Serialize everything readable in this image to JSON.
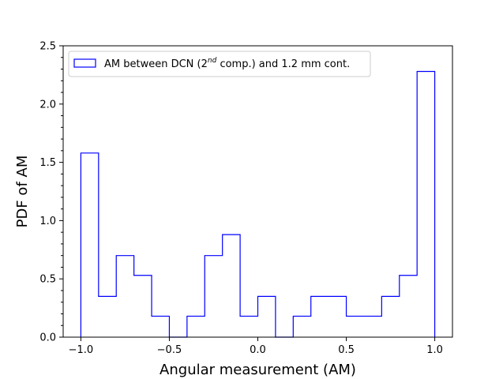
{
  "chart_data": {
    "type": "histogram",
    "xlabel": "Angular measurement (AM)",
    "ylabel": "PDF of AM",
    "xlim": [
      -1.1,
      1.1
    ],
    "ylim": [
      0.0,
      2.5
    ],
    "xticks": [
      -1.0,
      -0.5,
      0.0,
      0.5,
      1.0
    ],
    "xtick_labels": [
      "−1.0",
      "−0.5",
      "0.0",
      "0.5",
      "1.0"
    ],
    "yticks": [
      0.0,
      0.5,
      1.0,
      1.5,
      2.0,
      2.5
    ],
    "ytick_labels": [
      "0.0",
      "0.5",
      "1.0",
      "1.5",
      "2.0",
      "2.5"
    ],
    "y_minor_step": 0.1,
    "bin_edges": [
      -1.0,
      -0.9,
      -0.8,
      -0.7,
      -0.6,
      -0.5,
      -0.4,
      -0.3,
      -0.2,
      -0.1,
      0.0,
      0.1,
      0.2,
      0.3,
      0.4,
      0.5,
      0.6,
      0.7,
      0.8,
      0.9,
      1.0
    ],
    "values": [
      1.58,
      0.35,
      0.7,
      0.53,
      0.18,
      0.0,
      0.18,
      0.7,
      0.88,
      0.18,
      0.35,
      0.0,
      0.18,
      0.35,
      0.35,
      0.18,
      0.18,
      0.35,
      0.53,
      2.28
    ],
    "series": [
      {
        "name": "AM between DCN (2nd comp.) and 1.2 mm cont.",
        "color": "#0000ff"
      }
    ],
    "legend": {
      "position": "top-left",
      "label_parts": {
        "before": "AM between DCN (2",
        "sup": "nd",
        "after": " comp.) and 1.2 mm cont."
      }
    },
    "grid": false
  }
}
